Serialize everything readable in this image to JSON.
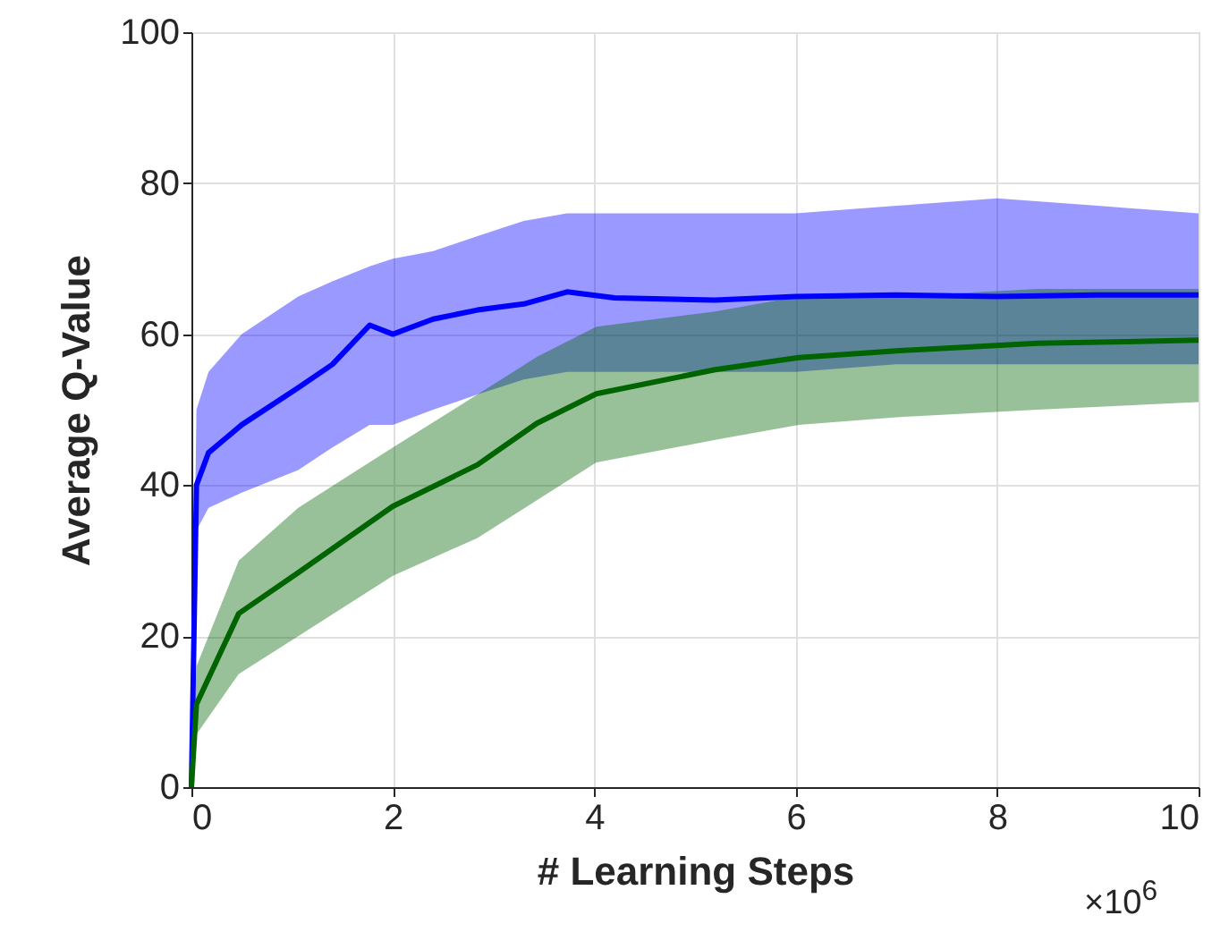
{
  "chart_data": {
    "type": "line",
    "xlabel": "# Learning Steps",
    "ylabel": "Average Q-Value",
    "xlim": [
      0,
      10
    ],
    "xticks": [
      0,
      2,
      4,
      6,
      8,
      10
    ],
    "ylim": [
      0,
      100
    ],
    "yticks": [
      0,
      20,
      40,
      60,
      80,
      100
    ],
    "grid": true,
    "line_style": "solid",
    "marker": "none",
    "annotations": [
      "×10$^{6}$"
    ],
    "series": [
      {
        "color": "#0000ff",
        "x": [
          0,
          0.05,
          0.17,
          0.5,
          1.06,
          1.4,
          1.77,
          2.0,
          2.4,
          2.84,
          3.3,
          3.73,
          4.2,
          5.2,
          6.0,
          7.0,
          8.0,
          9.0,
          10
        ],
        "values": [
          0,
          40,
          44.3,
          48,
          52.9,
          56,
          61.2,
          60,
          62,
          63.2,
          64,
          65.6,
          64.8,
          64.5,
          65,
          65.2,
          65,
          65.2,
          65.2
        ],
        "lower": [
          0,
          34,
          37,
          39,
          42,
          45,
          48,
          48,
          50,
          52,
          54,
          55,
          55,
          55,
          55,
          56,
          56,
          56,
          56
        ],
        "upper": [
          0,
          50,
          55,
          60,
          65,
          67,
          69,
          70,
          71,
          73,
          75,
          76,
          76,
          76,
          76,
          77,
          78,
          77,
          76
        ]
      },
      {
        "color": "#006400",
        "x": [
          0,
          0.05,
          0.47,
          1.06,
          2.0,
          2.84,
          3.43,
          4.02,
          5.2,
          6.03,
          7.0,
          8.4,
          10
        ],
        "values": [
          0,
          11,
          23,
          28.4,
          37.2,
          42.7,
          48.2,
          52.1,
          55.3,
          56.9,
          57.8,
          58.8,
          59.2
        ],
        "lower": [
          0,
          7,
          15,
          20,
          28,
          33,
          38,
          43,
          46,
          48,
          49,
          50,
          51
        ],
        "upper": [
          0,
          16,
          30,
          37,
          45,
          52,
          57,
          61,
          63,
          65,
          65,
          66,
          66
        ]
      }
    ]
  }
}
